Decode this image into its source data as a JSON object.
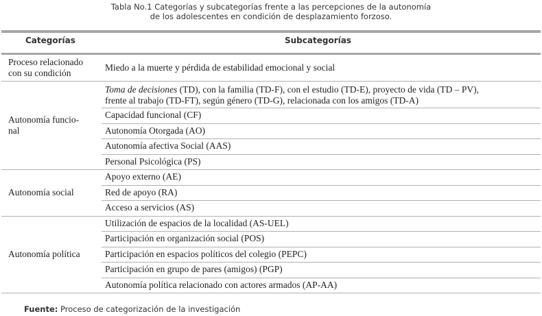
{
  "title_line1": "Tabla No.1 Categorías y subcategorías frente a las percepciones de la autonomía",
  "title_line2": "de los adolescentes en condición de desplazamiento forzoso.",
  "headers": {
    "categories": "Categorías",
    "subcategories": "Subcategorías"
  },
  "groups": [
    {
      "category": "Proceso relacionado con su condición",
      "items": [
        "Miedo a la muerte y pérdida de estabilidad emocional y social"
      ]
    },
    {
      "category": "Autonomía funcio-nal",
      "items": [
        {
          "italic": "Toma de decisiones",
          "text": " (TD),  con la familia (TD-F), con el estudio (TD-E), proyecto de vida  (TD – PV),",
          "text2": "frente al trabajo (TD-FT), según género (TD-G), relacionada con los amigos (TD-A)"
        },
        "Capacidad funcional (CF)",
        "Autonomía Otorgada (AO)",
        "Autonomía afectiva Social (AAS)",
        "Personal Psicológica (PS)"
      ]
    },
    {
      "category": "Autonomía social",
      "items": [
        "Apoyo externo (AE)",
        "Red de apoyo (RA)",
        "Acceso a servicios (AS)"
      ]
    },
    {
      "category": "Autonomía política",
      "items": [
        "Utilización de espacios de la localidad (AS-UEL)",
        "Participación en organización social (POS)",
        "Participación en espacios políticos del colegio (PEPC)",
        "Participación en grupo de pares (amigos) (PGP)",
        "Autonomía política relacionado con actores armados (AP-AA)"
      ]
    }
  ],
  "source": {
    "label": "Fuente:",
    "text": " Proceso de categorización de la investigación"
  }
}
